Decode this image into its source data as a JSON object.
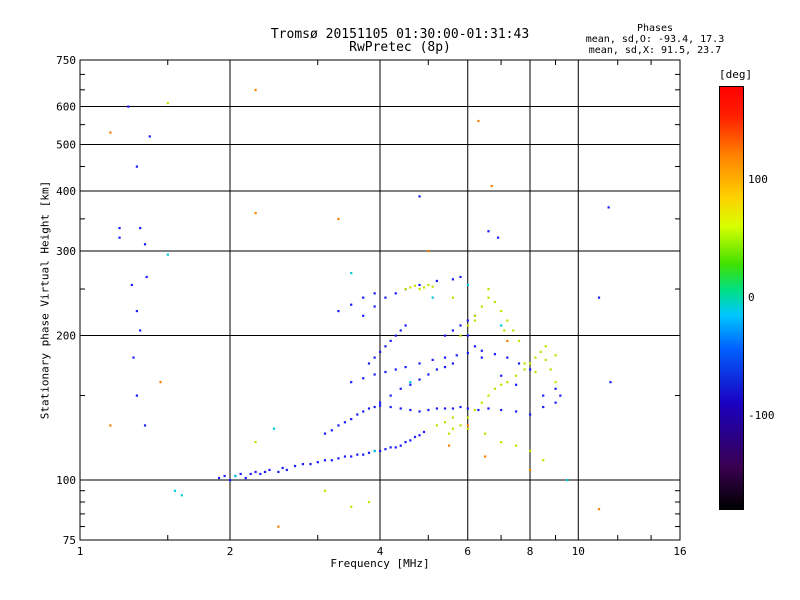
{
  "header": {
    "title_line1": "Tromsø 20151105 01:30:00-01:31:43",
    "title_line2": "RwPretec (8p)"
  },
  "phases": {
    "title": "Phases",
    "line1": "mean, sd,O: -93.4, 17.3",
    "line2": "mean, sd,X:  91.5, 23.7"
  },
  "chart_data": {
    "type": "scatter",
    "xlabel": "Frequency [MHz]",
    "ylabel": "Stationary phase Virtual Height [km]",
    "x_scale": "log",
    "y_scale": "log",
    "xlim": [
      1,
      16
    ],
    "ylim": [
      75,
      750
    ],
    "x_ticks": [
      "1",
      "2",
      "4",
      "6",
      "8",
      "10",
      "16"
    ],
    "x_tick_values": [
      1,
      2,
      4,
      6,
      8,
      10,
      16
    ],
    "y_ticks": [
      "75",
      "100",
      "200",
      "300",
      "400",
      "500",
      "600",
      "750"
    ],
    "y_tick_values": [
      75,
      100,
      200,
      300,
      400,
      500,
      600,
      750
    ],
    "grid": true,
    "colorbar": {
      "label": "[deg]",
      "ticks": [
        "100",
        "0",
        "-100"
      ],
      "tick_values": [
        100,
        0,
        -100
      ],
      "range": [
        -180,
        180
      ]
    },
    "series": [
      {
        "description": "blue O-mode echoes (approximate)",
        "color": "#1a1aff",
        "points": [
          [
            1.9,
            101
          ],
          [
            1.95,
            102
          ],
          [
            2.0,
            100
          ],
          [
            2.05,
            102
          ],
          [
            2.1,
            103
          ],
          [
            2.15,
            101
          ],
          [
            2.2,
            103
          ],
          [
            2.25,
            104
          ],
          [
            2.3,
            103
          ],
          [
            2.35,
            104
          ],
          [
            2.4,
            105
          ],
          [
            2.5,
            104
          ],
          [
            2.55,
            106
          ],
          [
            2.6,
            105
          ],
          [
            2.7,
            107
          ],
          [
            2.8,
            108
          ],
          [
            2.9,
            108
          ],
          [
            3.0,
            109
          ],
          [
            3.1,
            110
          ],
          [
            3.2,
            110
          ],
          [
            3.3,
            111
          ],
          [
            3.4,
            112
          ],
          [
            3.5,
            112
          ],
          [
            3.6,
            113
          ],
          [
            3.7,
            113
          ],
          [
            3.8,
            114
          ],
          [
            3.9,
            115
          ],
          [
            4.0,
            115
          ],
          [
            4.1,
            116
          ],
          [
            4.2,
            117
          ],
          [
            4.3,
            117
          ],
          [
            4.4,
            118
          ],
          [
            4.5,
            120
          ],
          [
            4.6,
            121
          ],
          [
            4.7,
            123
          ],
          [
            4.8,
            124
          ],
          [
            4.9,
            126
          ],
          [
            3.1,
            125
          ],
          [
            3.2,
            127
          ],
          [
            3.3,
            130
          ],
          [
            3.4,
            132
          ],
          [
            3.5,
            134
          ],
          [
            3.6,
            137
          ],
          [
            3.7,
            139
          ],
          [
            3.8,
            141
          ],
          [
            3.9,
            142
          ],
          [
            4.0,
            143
          ],
          [
            4.2,
            142
          ],
          [
            4.4,
            141
          ],
          [
            4.6,
            140
          ],
          [
            4.8,
            139
          ],
          [
            5.0,
            140
          ],
          [
            5.2,
            141
          ],
          [
            5.4,
            141
          ],
          [
            5.6,
            141
          ],
          [
            5.8,
            142
          ],
          [
            6.0,
            141
          ],
          [
            6.3,
            140
          ],
          [
            6.6,
            141
          ],
          [
            7.0,
            140
          ],
          [
            7.5,
            139
          ],
          [
            8.0,
            137
          ],
          [
            8.5,
            142
          ],
          [
            9.0,
            145
          ],
          [
            9.2,
            150
          ],
          [
            3.5,
            160
          ],
          [
            3.7,
            163
          ],
          [
            3.9,
            166
          ],
          [
            4.1,
            168
          ],
          [
            4.3,
            170
          ],
          [
            4.5,
            172
          ],
          [
            4.8,
            175
          ],
          [
            5.1,
            178
          ],
          [
            5.4,
            180
          ],
          [
            5.7,
            182
          ],
          [
            6.0,
            184
          ],
          [
            6.4,
            186
          ],
          [
            6.8,
            183
          ],
          [
            7.2,
            180
          ],
          [
            7.6,
            175
          ],
          [
            8.0,
            170
          ],
          [
            3.8,
            175
          ],
          [
            3.9,
            180
          ],
          [
            4.0,
            185
          ],
          [
            4.1,
            190
          ],
          [
            4.2,
            195
          ],
          [
            4.3,
            200
          ],
          [
            4.4,
            205
          ],
          [
            4.5,
            210
          ],
          [
            5.4,
            200
          ],
          [
            5.6,
            205
          ],
          [
            5.8,
            210
          ],
          [
            6.0,
            215
          ],
          [
            6.2,
            220
          ],
          [
            4.0,
            145
          ],
          [
            4.2,
            150
          ],
          [
            4.4,
            155
          ],
          [
            4.6,
            158
          ],
          [
            4.8,
            162
          ],
          [
            5.0,
            166
          ],
          [
            5.2,
            170
          ],
          [
            5.4,
            172
          ],
          [
            5.6,
            175
          ],
          [
            3.7,
            220
          ],
          [
            3.9,
            230
          ],
          [
            4.1,
            240
          ],
          [
            4.3,
            245
          ],
          [
            4.5,
            250
          ],
          [
            4.8,
            255
          ],
          [
            5.2,
            260
          ],
          [
            5.6,
            262
          ],
          [
            5.8,
            265
          ],
          [
            3.3,
            225
          ],
          [
            3.5,
            232
          ],
          [
            3.7,
            240
          ],
          [
            3.9,
            245
          ],
          [
            6.0,
            200
          ],
          [
            6.2,
            190
          ],
          [
            6.4,
            180
          ],
          [
            7.0,
            165
          ],
          [
            7.5,
            158
          ],
          [
            8.5,
            150
          ],
          [
            9.0,
            155
          ],
          [
            1.2,
            335
          ],
          [
            1.25,
            600
          ],
          [
            1.3,
            450
          ],
          [
            1.32,
            335
          ],
          [
            1.35,
            310
          ],
          [
            1.27,
            255
          ],
          [
            1.3,
            225
          ],
          [
            1.32,
            205
          ],
          [
            1.28,
            180
          ],
          [
            1.3,
            150
          ],
          [
            1.35,
            130
          ],
          [
            1.36,
            265
          ],
          [
            1.38,
            520
          ],
          [
            1.2,
            320
          ],
          [
            4.8,
            390
          ],
          [
            6.6,
            330
          ],
          [
            6.9,
            320
          ],
          [
            11.5,
            370
          ],
          [
            11.0,
            240
          ],
          [
            11.6,
            160
          ]
        ]
      },
      {
        "description": "yellow-green X-mode echoes (approximate)",
        "color": "#c8e000",
        "points": [
          [
            4.5,
            250
          ],
          [
            4.6,
            252
          ],
          [
            4.7,
            254
          ],
          [
            4.8,
            250
          ],
          [
            4.9,
            252
          ],
          [
            5.0,
            255
          ],
          [
            5.1,
            253
          ],
          [
            5.5,
            125
          ],
          [
            5.6,
            128
          ],
          [
            5.8,
            130
          ],
          [
            6.0,
            135
          ],
          [
            6.2,
            140
          ],
          [
            6.4,
            145
          ],
          [
            6.6,
            150
          ],
          [
            6.8,
            155
          ],
          [
            7.0,
            158
          ],
          [
            7.2,
            160
          ],
          [
            7.5,
            165
          ],
          [
            7.8,
            170
          ],
          [
            8.0,
            175
          ],
          [
            8.2,
            180
          ],
          [
            8.4,
            185
          ],
          [
            8.6,
            190
          ],
          [
            8.8,
            170
          ],
          [
            9.0,
            160
          ],
          [
            5.8,
            200
          ],
          [
            6.0,
            210
          ],
          [
            6.2,
            220
          ],
          [
            6.4,
            230
          ],
          [
            6.6,
            240
          ],
          [
            6.8,
            235
          ],
          [
            7.0,
            225
          ],
          [
            7.2,
            215
          ],
          [
            7.4,
            205
          ],
          [
            7.6,
            195
          ],
          [
            5.2,
            130
          ],
          [
            5.4,
            132
          ],
          [
            5.6,
            135
          ],
          [
            6.0,
            128
          ],
          [
            6.5,
            125
          ],
          [
            7.0,
            120
          ],
          [
            7.5,
            118
          ],
          [
            8.0,
            115
          ],
          [
            8.5,
            110
          ],
          [
            7.8,
            175
          ],
          [
            8.2,
            168
          ],
          [
            8.6,
            178
          ],
          [
            9.0,
            182
          ],
          [
            5.6,
            240
          ],
          [
            6.2,
            215
          ],
          [
            6.6,
            250
          ],
          [
            7.1,
            205
          ],
          [
            1.5,
            610
          ],
          [
            2.25,
            120
          ],
          [
            3.8,
            90
          ],
          [
            3.5,
            88
          ],
          [
            3.1,
            95
          ]
        ]
      },
      {
        "description": "orange/red outliers (approximate)",
        "color": "#ff8000",
        "points": [
          [
            1.15,
            530
          ],
          [
            1.45,
            160
          ],
          [
            2.25,
            650
          ],
          [
            2.25,
            360
          ],
          [
            3.3,
            350
          ],
          [
            6.3,
            560
          ],
          [
            6.7,
            410
          ],
          [
            5.0,
            300
          ],
          [
            2.5,
            80
          ],
          [
            11.0,
            87
          ],
          [
            6.5,
            112
          ],
          [
            8.0,
            105
          ],
          [
            6.0,
            130
          ],
          [
            5.5,
            118
          ],
          [
            7.2,
            195
          ],
          [
            1.15,
            130
          ]
        ]
      },
      {
        "description": "cyan/teal outliers (approximate)",
        "color": "#00c8d8",
        "points": [
          [
            1.5,
            295
          ],
          [
            1.55,
            95
          ],
          [
            1.6,
            93
          ],
          [
            2.05,
            102
          ],
          [
            2.45,
            128
          ],
          [
            3.5,
            270
          ],
          [
            3.9,
            115
          ],
          [
            4.6,
            160
          ],
          [
            9.5,
            100
          ],
          [
            6.0,
            255
          ],
          [
            7.0,
            210
          ],
          [
            5.1,
            240
          ]
        ]
      }
    ]
  }
}
